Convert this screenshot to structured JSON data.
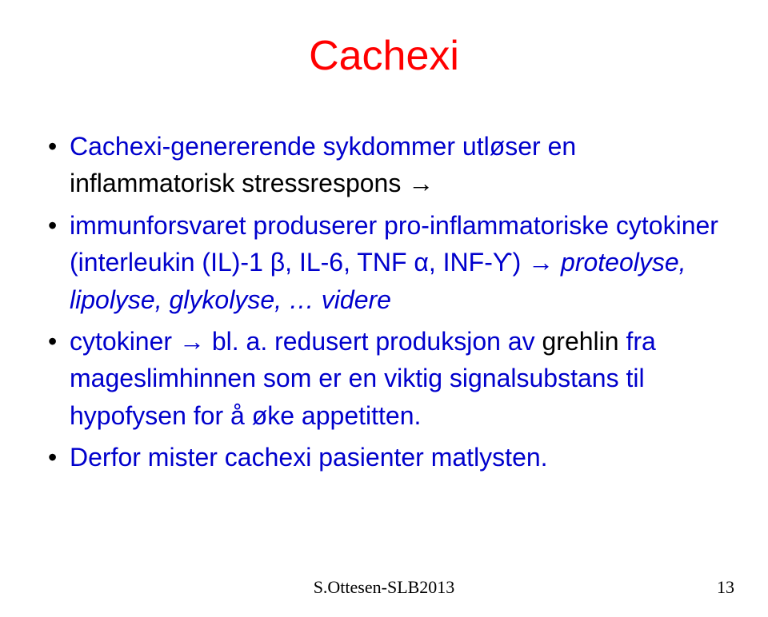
{
  "title": "Cachexi",
  "bullets": [
    {
      "segments": [
        {
          "text": "Cachexi-genererende sykdommer utløser en ",
          "color": "blue"
        },
        {
          "text": "inflammatorisk stressrespons",
          "color": "black"
        },
        {
          "text": " →",
          "color": "black"
        }
      ]
    },
    {
      "segments": [
        {
          "text": "immunforsvaret produserer pro-inflammatoriske cytokiner (interleukin (IL)-1 β, IL-6, TNF α, INF-Ƴ) → ",
          "color": "blue"
        },
        {
          "text": "proteolyse, lipolyse, glykolyse, … videre",
          "color": "blue",
          "italic": true
        }
      ]
    },
    {
      "segments": [
        {
          "text": "cytokiner → bl. a. redusert produksjon av ",
          "color": "blue"
        },
        {
          "text": "grehlin",
          "color": "black"
        },
        {
          "text": " fra mageslimhinnen som er en viktig signalsubstans til hypofysen for å øke appetitten.",
          "color": "blue"
        }
      ]
    },
    {
      "segments": [
        {
          "text": "Derfor mister cachexi pasienter matlysten.",
          "color": "blue"
        }
      ]
    }
  ],
  "footer": {
    "center": "S.Ottesen-SLB2013",
    "pageNum": "13"
  },
  "colors": {
    "title": "#ff0000",
    "bullet_text": "#0000cc",
    "black_text": "#000000",
    "background": "#ffffff"
  },
  "fonts": {
    "main_family": "Comic Sans MS",
    "footer_family": "Times New Roman",
    "title_size": 52,
    "body_size": 32,
    "footer_size": 22
  }
}
